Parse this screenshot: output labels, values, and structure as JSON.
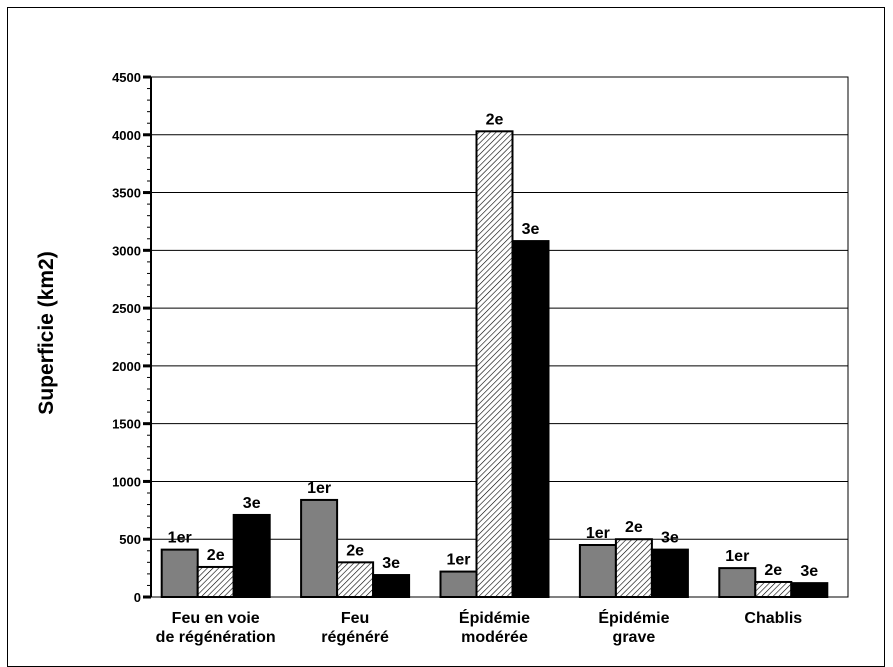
{
  "chart_data": {
    "type": "bar",
    "title": "",
    "xlabel": "",
    "ylabel": "Superficie (km2)",
    "ylim": [
      0,
      4500
    ],
    "yticks": [
      0,
      500,
      1000,
      1500,
      2000,
      2500,
      3000,
      3500,
      4000,
      4500
    ],
    "grid": true,
    "legend": "none",
    "categories": [
      [
        "Feu en voie",
        "de régénération"
      ],
      [
        "Feu",
        "régénéré"
      ],
      [
        "Épidémie",
        "modérée"
      ],
      [
        "Épidémie",
        "grave"
      ],
      [
        "Chablis"
      ]
    ],
    "series": [
      {
        "label": "1er",
        "fill": "#808080",
        "pattern": "solid",
        "values": [
          410,
          840,
          220,
          450,
          250
        ]
      },
      {
        "label": "2e",
        "fill": "#ffffff",
        "pattern": "hatch",
        "values": [
          260,
          300,
          4030,
          500,
          130
        ]
      },
      {
        "label": "3e",
        "fill": "#000000",
        "pattern": "solid",
        "values": [
          710,
          190,
          3080,
          410,
          120
        ]
      }
    ]
  }
}
